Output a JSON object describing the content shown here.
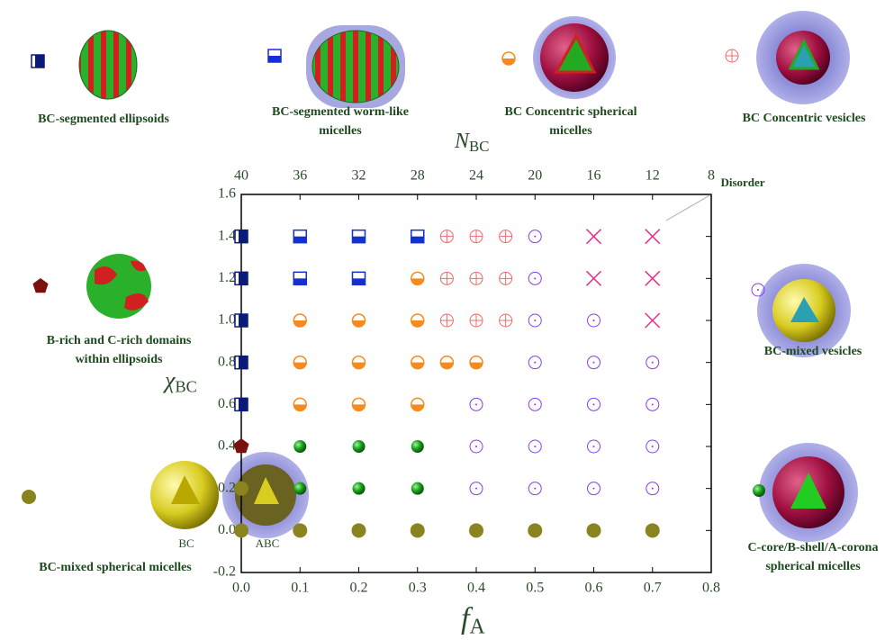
{
  "chart_data": {
    "type": "scatter",
    "x_label": "f",
    "x_label_sub": "A",
    "y_label": "χ",
    "y_label_sub": "BC",
    "x2_label": "N",
    "x2_label_sub": "BC",
    "xlim": [
      0,
      0.8
    ],
    "xticks": [
      {
        "value": 0,
        "label": "0.0"
      },
      {
        "value": 0.1,
        "label": "0.1"
      },
      {
        "value": 0.2,
        "label": "0.2"
      },
      {
        "value": 0.3,
        "label": "0.3"
      },
      {
        "value": 0.4,
        "label": "0.4"
      },
      {
        "value": 0.5,
        "label": "0.5"
      },
      {
        "value": 0.6,
        "label": "0.6"
      },
      {
        "value": 0.7,
        "label": "0.7"
      },
      {
        "value": 0.8,
        "label": "0.8"
      }
    ],
    "x2lim": [
      40,
      8
    ],
    "x2ticks": [
      40,
      36,
      32,
      28,
      24,
      20,
      16,
      12,
      8
    ],
    "ylim": [
      -0.2,
      1.6
    ],
    "yticks": [
      -0.2,
      {
        "value": 0,
        "label": "0.0"
      },
      0.2,
      0.4,
      0.6,
      0.8,
      {
        "value": 1,
        "label": "1.0"
      },
      1.2,
      1.4,
      1.6
    ],
    "series": [
      {
        "name": "BC-segmented ellipsoids",
        "color": "#0a1a7a",
        "marker": "square-right",
        "x": [
          0,
          0,
          0,
          0,
          0
        ],
        "y": [
          0.6,
          0.8,
          1,
          1.2,
          1.4
        ]
      },
      {
        "name": "BC-segmented worm-like micelles",
        "color": "#1530d0",
        "marker": "square-bottom",
        "x": [
          0.1,
          0.2,
          0.3,
          0.1,
          0.2
        ],
        "y": [
          1.4,
          1.4,
          1.4,
          1.2,
          1.2
        ]
      },
      {
        "name": "BC Concentric spherical micelles",
        "color": "#f58a1f",
        "marker": "circle-bottom",
        "x": [
          0.3,
          0.1,
          0.2,
          0.3,
          0.1,
          0.2,
          0.3,
          0.35,
          0.4,
          0.1,
          0.2,
          0.3
        ],
        "y": [
          1.2,
          1,
          1,
          1,
          0.8,
          0.8,
          0.8,
          0.8,
          0.8,
          0.6,
          0.6,
          0.6
        ]
      },
      {
        "name": "BC Concentric vesicles",
        "color": "#f06a6a",
        "marker": "circle-plus",
        "x": [
          0.35,
          0.4,
          0.45,
          0.35,
          0.4,
          0.45,
          0.35,
          0.4,
          0.45
        ],
        "y": [
          1.4,
          1.4,
          1.4,
          1.2,
          1.2,
          1.2,
          1,
          1,
          1
        ]
      },
      {
        "name": "BC-mixed vesicles",
        "color": "#8a3cf0",
        "marker": "circle-dot",
        "x": [
          0.5,
          0.5,
          0.5,
          0.6,
          0.5,
          0.6,
          0.7,
          0.4,
          0.5,
          0.6,
          0.7,
          0.4,
          0.5,
          0.6,
          0.7,
          0.4,
          0.5,
          0.6,
          0.7
        ],
        "y": [
          1.4,
          1.2,
          1,
          1,
          0.8,
          0.8,
          0.8,
          0.6,
          0.6,
          0.6,
          0.6,
          0.4,
          0.4,
          0.4,
          0.4,
          0.2,
          0.2,
          0.2,
          0.2
        ]
      },
      {
        "name": "Disorder",
        "color": "#e8308a",
        "marker": "x",
        "x": [
          0.6,
          0.7,
          0.6,
          0.7,
          0.7
        ],
        "y": [
          1.4,
          1.4,
          1.2,
          1.2,
          1
        ]
      },
      {
        "name": "B-rich and C-rich domains within ellipsoids",
        "color": "#7a1010",
        "marker": "pentagon",
        "x": [
          0
        ],
        "y": [
          0.4
        ]
      },
      {
        "name": "C-core/B-shell/A-corona spherical micelles",
        "color": "#1a8a1a",
        "marker": "ball",
        "x": [
          0.1,
          0.2,
          0.3,
          0.1,
          0.2,
          0.3
        ],
        "y": [
          0.4,
          0.4,
          0.4,
          0.2,
          0.2,
          0.2
        ]
      },
      {
        "name": "BC-mixed spherical micelles",
        "color": "#8a8420",
        "marker": "circle",
        "x": [
          0,
          0,
          0.1,
          0.2,
          0.3,
          0.4,
          0.5,
          0.6,
          0.7
        ],
        "y": [
          0.2,
          0,
          0,
          0,
          0,
          0,
          0,
          0,
          0
        ],
        "image_labels": [
          "BC",
          "ABC"
        ]
      }
    ]
  }
}
